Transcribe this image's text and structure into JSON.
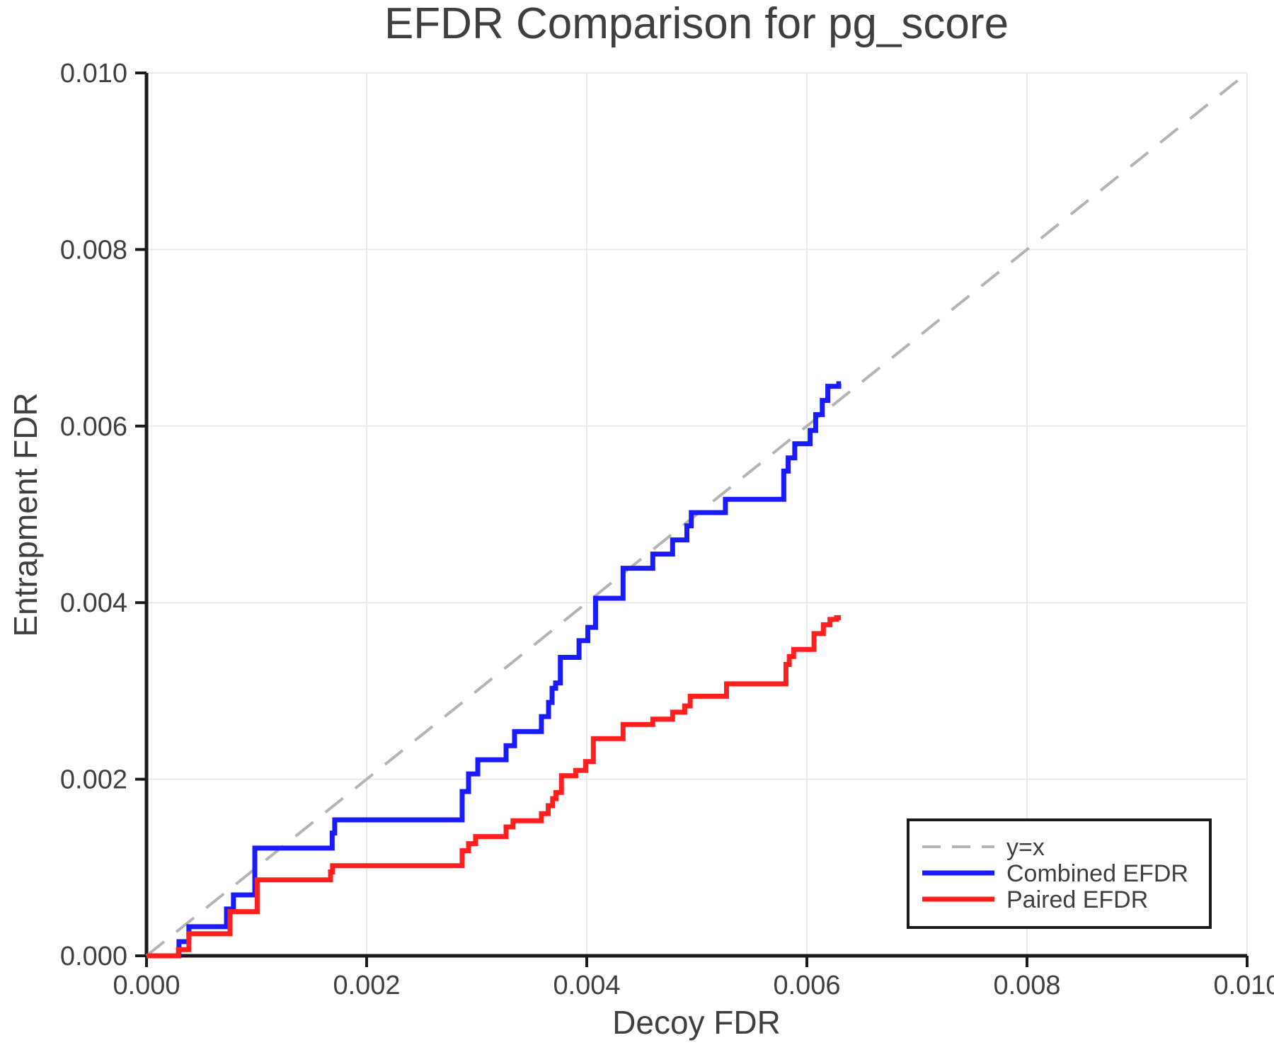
{
  "figure": {
    "title": "EFDR Comparison for pg_score"
  },
  "colors": {
    "text": "#3f3f3f",
    "spine": "#1a1a1a",
    "grid": "#eaeaea",
    "diagonal": "#b4b4b4",
    "combined": "#1a1aff",
    "paired": "#ff1f1f",
    "legend_border": "#1a1a1a",
    "background": "#ffffff"
  },
  "chart_data": {
    "type": "line",
    "title": "EFDR Comparison for pg_score",
    "xlabel": "Decoy FDR",
    "ylabel": "Entrapment FDR",
    "xlim": [
      0.0,
      0.01
    ],
    "ylim": [
      0.0,
      0.01
    ],
    "grid": true,
    "x_ticks": {
      "values": [
        0.0,
        0.002,
        0.004,
        0.006,
        0.008,
        0.01
      ],
      "labels": [
        "0.000",
        "0.002",
        "0.004",
        "0.006",
        "0.008",
        "0.010"
      ]
    },
    "y_ticks": {
      "values": [
        0.0,
        0.002,
        0.004,
        0.006,
        0.008,
        0.01
      ],
      "labels": [
        "0.000",
        "0.002",
        "0.004",
        "0.006",
        "0.008",
        "0.010"
      ]
    },
    "legend": {
      "position": "lower right",
      "entries": [
        "y=x",
        "Combined EFDR",
        "Paired EFDR"
      ]
    },
    "series": [
      {
        "name": "y=x",
        "style": "dashed",
        "color": "#b4b4b4",
        "width": 4,
        "points": [
          [
            0.0,
            0.0
          ],
          [
            0.01,
            0.01
          ]
        ]
      },
      {
        "name": "Combined EFDR",
        "style": "step",
        "color": "#1a1aff",
        "width": 7,
        "end_x": 0.00631,
        "points": [
          [
            0.000295,
            0.00016
          ],
          [
            0.000385,
            0.00033
          ],
          [
            0.000727,
            0.00053
          ],
          [
            0.00079,
            0.00069
          ],
          [
            0.000984,
            0.00122
          ],
          [
            0.001687,
            0.00139
          ],
          [
            0.00171,
            0.00154
          ],
          [
            0.002868,
            0.00186
          ],
          [
            0.002926,
            0.00206
          ],
          [
            0.00301,
            0.00222
          ],
          [
            0.003267,
            0.00238
          ],
          [
            0.003344,
            0.00254
          ],
          [
            0.003588,
            0.00271
          ],
          [
            0.003653,
            0.00287
          ],
          [
            0.003685,
            0.00303
          ],
          [
            0.003717,
            0.00309
          ],
          [
            0.00376,
            0.00338
          ],
          [
            0.00393,
            0.00357
          ],
          [
            0.00401,
            0.00372
          ],
          [
            0.00408,
            0.00405
          ],
          [
            0.00433,
            0.00439
          ],
          [
            0.0046,
            0.00455
          ],
          [
            0.00478,
            0.00471
          ],
          [
            0.00491,
            0.00487
          ],
          [
            0.00495,
            0.00502
          ],
          [
            0.00526,
            0.00517
          ],
          [
            0.00579,
            0.00549
          ],
          [
            0.00583,
            0.00564
          ],
          [
            0.00589,
            0.0058
          ],
          [
            0.00603,
            0.00595
          ],
          [
            0.00608,
            0.00613
          ],
          [
            0.00614,
            0.00629
          ],
          [
            0.00619,
            0.00645
          ],
          [
            0.00629,
            0.00648
          ]
        ]
      },
      {
        "name": "Paired EFDR",
        "style": "step",
        "color": "#ff1f1f",
        "width": 7,
        "end_x": 0.00631,
        "points": [
          [
            0.00029,
            7e-05
          ],
          [
            0.000385,
            0.00025
          ],
          [
            0.000759,
            0.0005
          ],
          [
            0.001006,
            0.00086
          ],
          [
            0.001672,
            0.00095
          ],
          [
            0.00169,
            0.00102
          ],
          [
            0.002868,
            0.00119
          ],
          [
            0.002926,
            0.00127
          ],
          [
            0.00299,
            0.00135
          ],
          [
            0.003267,
            0.00146
          ],
          [
            0.00333,
            0.00153
          ],
          [
            0.003588,
            0.00161
          ],
          [
            0.00365,
            0.0017
          ],
          [
            0.00369,
            0.00178
          ],
          [
            0.00372,
            0.00185
          ],
          [
            0.00377,
            0.00204
          ],
          [
            0.0039,
            0.0021
          ],
          [
            0.00399,
            0.0022
          ],
          [
            0.00406,
            0.00246
          ],
          [
            0.00433,
            0.00262
          ],
          [
            0.0046,
            0.00268
          ],
          [
            0.00478,
            0.00276
          ],
          [
            0.00489,
            0.00283
          ],
          [
            0.00494,
            0.00294
          ],
          [
            0.00527,
            0.00308
          ],
          [
            0.00581,
            0.0033
          ],
          [
            0.00584,
            0.00339
          ],
          [
            0.00588,
            0.00347
          ],
          [
            0.006065,
            0.00365
          ],
          [
            0.00615,
            0.00375
          ],
          [
            0.00621,
            0.00381
          ],
          [
            0.00627,
            0.00383
          ]
        ]
      }
    ]
  }
}
